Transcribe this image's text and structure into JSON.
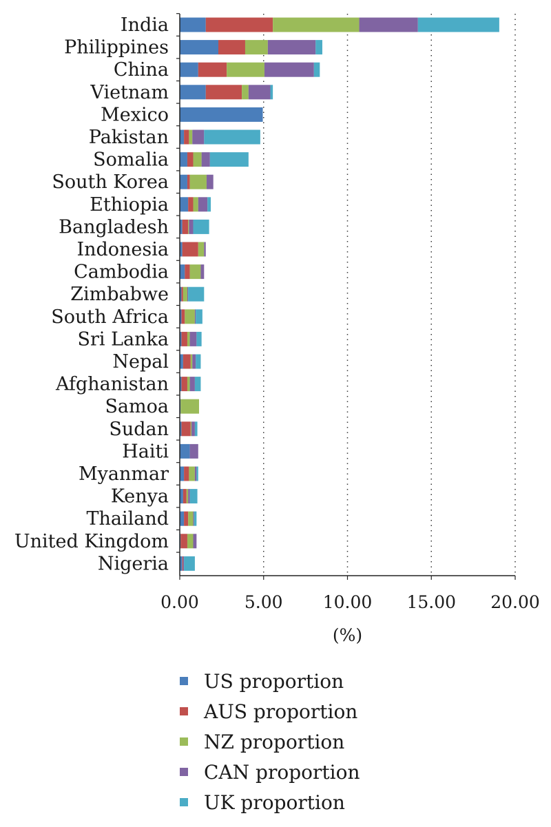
{
  "chart_data": {
    "type": "bar",
    "orientation": "horizontal",
    "stacked": true,
    "title": "",
    "xlabel": "(%)",
    "ylabel": "",
    "xlim": [
      0,
      20
    ],
    "x_ticks": [
      "0.00",
      "5.00",
      "10.00",
      "15.00",
      "20.00"
    ],
    "x_tick_values": [
      0,
      5,
      10,
      15,
      20
    ],
    "grid": "vertical dotted",
    "legend_position": "bottom",
    "categories": [
      "India",
      "Philippines",
      "China",
      "Vietnam",
      "Mexico",
      "Pakistan",
      "Somalia",
      "South Korea",
      "Ethiopia",
      "Bangladesh",
      "Indonesia",
      "Cambodia",
      "Zimbabwe",
      "South Africa",
      "Sri Lanka",
      "Nepal",
      "Afghanistan",
      "Samoa",
      "Sudan",
      "Haiti",
      "Myanmar",
      "Kenya",
      "Thailand",
      "United Kingdom",
      "Nigeria"
    ],
    "series": [
      {
        "name": "US proportion",
        "color": "#4a7ebb",
        "values": [
          1.55,
          2.3,
          1.1,
          1.55,
          4.95,
          0.25,
          0.45,
          0.45,
          0.5,
          0.15,
          0.15,
          0.3,
          0.1,
          0.1,
          0.1,
          0.2,
          0.1,
          0.05,
          0.1,
          0.6,
          0.25,
          0.2,
          0.25,
          0.05,
          0.15
        ]
      },
      {
        "name": "AUS proportion",
        "color": "#c0504d",
        "values": [
          4.0,
          1.6,
          1.7,
          2.15,
          0.0,
          0.3,
          0.35,
          0.15,
          0.3,
          0.35,
          0.95,
          0.3,
          0.1,
          0.2,
          0.35,
          0.45,
          0.35,
          0.0,
          0.55,
          0.0,
          0.3,
          0.2,
          0.25,
          0.4,
          0.05
        ]
      },
      {
        "name": "NZ proportion",
        "color": "#9bbb59",
        "values": [
          5.15,
          1.35,
          2.25,
          0.4,
          0.0,
          0.2,
          0.5,
          1.0,
          0.3,
          0.05,
          0.35,
          0.65,
          0.25,
          0.6,
          0.15,
          0.1,
          0.15,
          1.1,
          0.05,
          0.0,
          0.35,
          0.1,
          0.3,
          0.35,
          0.0
        ]
      },
      {
        "name": "CAN proportion",
        "color": "#8064a2",
        "values": [
          3.5,
          2.85,
          2.95,
          1.3,
          0.0,
          0.7,
          0.5,
          0.4,
          0.55,
          0.25,
          0.1,
          0.2,
          0.05,
          0.05,
          0.4,
          0.2,
          0.3,
          0.0,
          0.2,
          0.5,
          0.1,
          0.1,
          0.05,
          0.2,
          0.05
        ]
      },
      {
        "name": "UK proportion",
        "color": "#4bacc6",
        "values": [
          4.85,
          0.4,
          0.35,
          0.15,
          0.0,
          3.35,
          2.3,
          0.0,
          0.2,
          0.95,
          0.0,
          0.0,
          0.95,
          0.4,
          0.3,
          0.3,
          0.35,
          0.0,
          0.15,
          0.0,
          0.1,
          0.45,
          0.15,
          0.0,
          0.65
        ]
      }
    ]
  }
}
